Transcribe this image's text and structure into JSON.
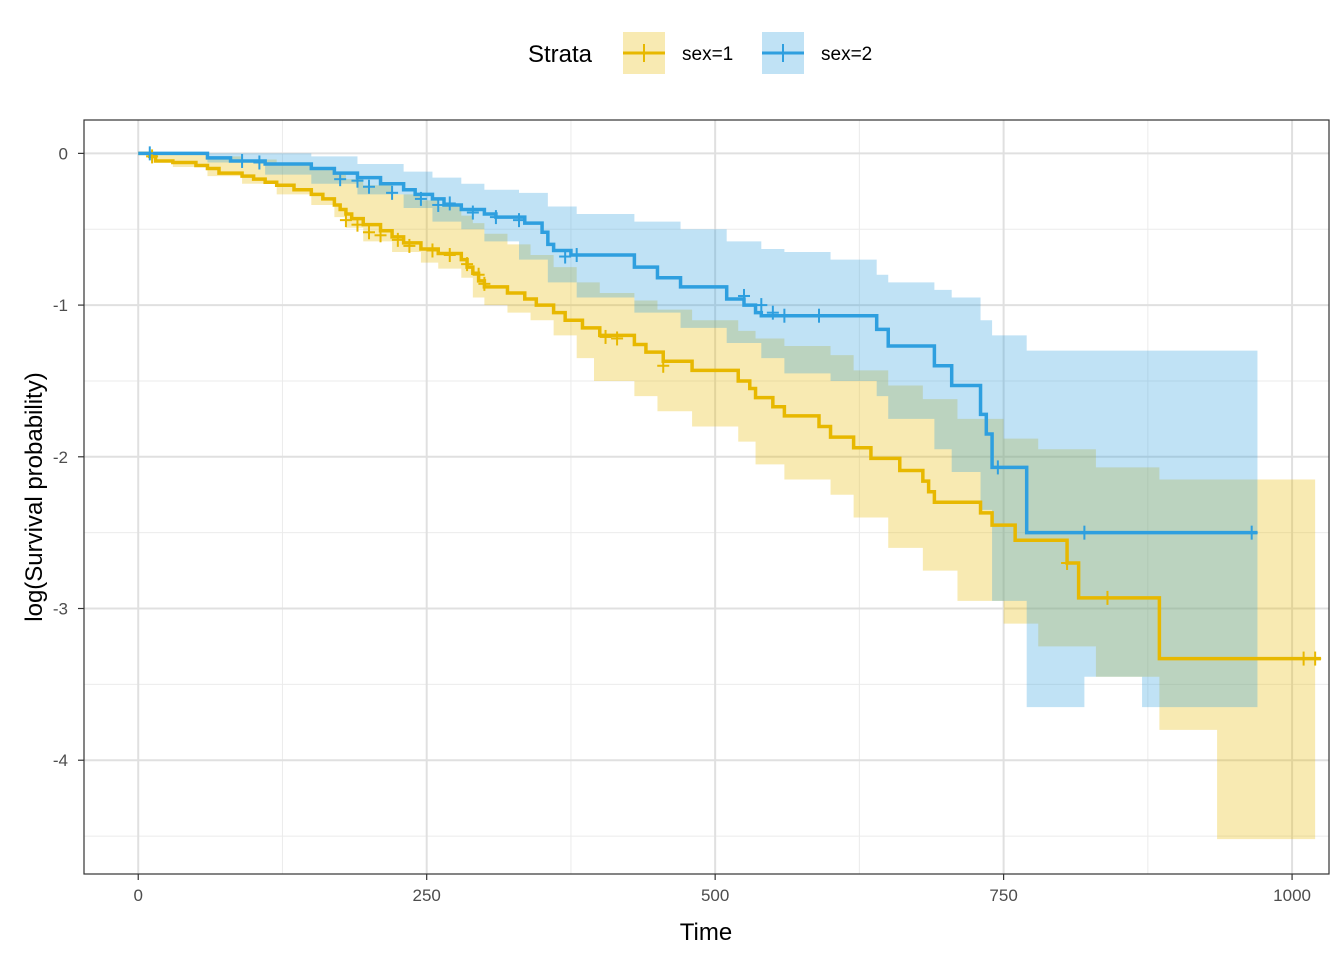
{
  "chart_data": {
    "type": "line",
    "subtype": "kaplan-meier step curve with confidence bands",
    "xlabel": "Time",
    "ylabel": "log(Survival probability)",
    "xlim": [
      -47,
      1032
    ],
    "ylim": [
      -4.75,
      0.22
    ],
    "x_ticks": [
      0,
      250,
      500,
      750,
      1000
    ],
    "y_ticks": [
      0,
      -1,
      -2,
      -3,
      -4
    ],
    "x_tick_labels": [
      "0",
      "250",
      "500",
      "750",
      "1000"
    ],
    "y_tick_labels": [
      "0",
      "-1",
      "-2",
      "-3",
      "-4"
    ],
    "grid": true,
    "legend": {
      "title": "Strata",
      "position": "top",
      "entries": [
        "sex=1",
        "sex=2"
      ]
    },
    "series": [
      {
        "name": "sex=1",
        "color": "#E7B800",
        "steps": [
          [
            0,
            0
          ],
          [
            10,
            -0.02
          ],
          [
            15,
            -0.05
          ],
          [
            30,
            -0.06
          ],
          [
            50,
            -0.08
          ],
          [
            60,
            -0.1
          ],
          [
            70,
            -0.13
          ],
          [
            90,
            -0.15
          ],
          [
            100,
            -0.17
          ],
          [
            110,
            -0.19
          ],
          [
            120,
            -0.21
          ],
          [
            135,
            -0.24
          ],
          [
            150,
            -0.27
          ],
          [
            160,
            -0.3
          ],
          [
            170,
            -0.34
          ],
          [
            175,
            -0.37
          ],
          [
            180,
            -0.4
          ],
          [
            185,
            -0.43
          ],
          [
            195,
            -0.47
          ],
          [
            210,
            -0.51
          ],
          [
            220,
            -0.55
          ],
          [
            230,
            -0.59
          ],
          [
            245,
            -0.63
          ],
          [
            260,
            -0.66
          ],
          [
            280,
            -0.7
          ],
          [
            285,
            -0.75
          ],
          [
            290,
            -0.79
          ],
          [
            295,
            -0.84
          ],
          [
            300,
            -0.88
          ],
          [
            320,
            -0.92
          ],
          [
            335,
            -0.96
          ],
          [
            345,
            -1.0
          ],
          [
            360,
            -1.05
          ],
          [
            370,
            -1.1
          ],
          [
            385,
            -1.15
          ],
          [
            400,
            -1.2
          ],
          [
            430,
            -1.26
          ],
          [
            440,
            -1.31
          ],
          [
            455,
            -1.37
          ],
          [
            480,
            -1.43
          ],
          [
            520,
            -1.5
          ],
          [
            530,
            -1.55
          ],
          [
            535,
            -1.61
          ],
          [
            550,
            -1.67
          ],
          [
            560,
            -1.73
          ],
          [
            590,
            -1.8
          ],
          [
            600,
            -1.87
          ],
          [
            620,
            -1.94
          ],
          [
            635,
            -2.01
          ],
          [
            660,
            -2.09
          ],
          [
            680,
            -2.16
          ],
          [
            685,
            -2.23
          ],
          [
            690,
            -2.3
          ],
          [
            730,
            -2.37
          ],
          [
            740,
            -2.45
          ],
          [
            760,
            -2.55
          ],
          [
            805,
            -2.7
          ],
          [
            815,
            -2.93
          ],
          [
            885,
            -3.33
          ],
          [
            1025,
            -3.33
          ]
        ],
        "lower": [
          [
            0,
            0
          ],
          [
            10,
            -0.04
          ],
          [
            30,
            -0.09
          ],
          [
            60,
            -0.15
          ],
          [
            90,
            -0.2
          ],
          [
            120,
            -0.27
          ],
          [
            150,
            -0.34
          ],
          [
            170,
            -0.42
          ],
          [
            180,
            -0.49
          ],
          [
            195,
            -0.58
          ],
          [
            220,
            -0.65
          ],
          [
            245,
            -0.72
          ],
          [
            260,
            -0.76
          ],
          [
            280,
            -0.82
          ],
          [
            290,
            -0.95
          ],
          [
            300,
            -1.0
          ],
          [
            320,
            -1.05
          ],
          [
            340,
            -1.1
          ],
          [
            360,
            -1.2
          ],
          [
            380,
            -1.35
          ],
          [
            395,
            -1.5
          ],
          [
            430,
            -1.6
          ],
          [
            450,
            -1.7
          ],
          [
            480,
            -1.8
          ],
          [
            520,
            -1.9
          ],
          [
            535,
            -2.05
          ],
          [
            560,
            -2.15
          ],
          [
            600,
            -2.25
          ],
          [
            620,
            -2.4
          ],
          [
            650,
            -2.6
          ],
          [
            680,
            -2.75
          ],
          [
            710,
            -2.95
          ],
          [
            750,
            -3.1
          ],
          [
            780,
            -3.25
          ],
          [
            830,
            -3.45
          ],
          [
            885,
            -3.8
          ],
          [
            935,
            -4.52
          ],
          [
            1020,
            -4.52
          ]
        ],
        "upper": [
          [
            0,
            0
          ],
          [
            30,
            0
          ],
          [
            60,
            -0.02
          ],
          [
            90,
            -0.04
          ],
          [
            120,
            -0.07
          ],
          [
            150,
            -0.1
          ],
          [
            170,
            -0.14
          ],
          [
            180,
            -0.17
          ],
          [
            195,
            -0.21
          ],
          [
            220,
            -0.27
          ],
          [
            245,
            -0.31
          ],
          [
            260,
            -0.35
          ],
          [
            280,
            -0.41
          ],
          [
            290,
            -0.46
          ],
          [
            300,
            -0.53
          ],
          [
            320,
            -0.6
          ],
          [
            340,
            -0.67
          ],
          [
            360,
            -0.75
          ],
          [
            380,
            -0.85
          ],
          [
            400,
            -0.92
          ],
          [
            430,
            -0.97
          ],
          [
            450,
            -1.03
          ],
          [
            480,
            -1.1
          ],
          [
            520,
            -1.17
          ],
          [
            535,
            -1.22
          ],
          [
            560,
            -1.27
          ],
          [
            600,
            -1.33
          ],
          [
            620,
            -1.43
          ],
          [
            650,
            -1.53
          ],
          [
            680,
            -1.62
          ],
          [
            710,
            -1.75
          ],
          [
            750,
            -1.88
          ],
          [
            780,
            -1.95
          ],
          [
            830,
            -2.07
          ],
          [
            885,
            -2.15
          ],
          [
            935,
            -2.15
          ],
          [
            1020,
            -2.15
          ]
        ]
      },
      {
        "name": "sex=2",
        "color": "#2E9FDF",
        "steps": [
          [
            0,
            0
          ],
          [
            60,
            -0.03
          ],
          [
            80,
            -0.05
          ],
          [
            110,
            -0.07
          ],
          [
            150,
            -0.1
          ],
          [
            170,
            -0.13
          ],
          [
            190,
            -0.16
          ],
          [
            210,
            -0.2
          ],
          [
            230,
            -0.24
          ],
          [
            240,
            -0.27
          ],
          [
            255,
            -0.3
          ],
          [
            265,
            -0.34
          ],
          [
            280,
            -0.37
          ],
          [
            300,
            -0.4
          ],
          [
            310,
            -0.42
          ],
          [
            335,
            -0.46
          ],
          [
            350,
            -0.52
          ],
          [
            355,
            -0.6
          ],
          [
            360,
            -0.64
          ],
          [
            375,
            -0.67
          ],
          [
            430,
            -0.75
          ],
          [
            450,
            -0.82
          ],
          [
            470,
            -0.88
          ],
          [
            510,
            -0.96
          ],
          [
            525,
            -1.0
          ],
          [
            535,
            -1.05
          ],
          [
            540,
            -1.07
          ],
          [
            560,
            -1.07
          ],
          [
            640,
            -1.16
          ],
          [
            650,
            -1.27
          ],
          [
            690,
            -1.4
          ],
          [
            705,
            -1.53
          ],
          [
            730,
            -1.72
          ],
          [
            735,
            -1.85
          ],
          [
            740,
            -2.07
          ],
          [
            770,
            -2.5
          ],
          [
            970,
            -2.5
          ]
        ],
        "lower": [
          [
            0,
            0
          ],
          [
            60,
            -0.06
          ],
          [
            110,
            -0.14
          ],
          [
            150,
            -0.2
          ],
          [
            190,
            -0.27
          ],
          [
            230,
            -0.36
          ],
          [
            255,
            -0.45
          ],
          [
            280,
            -0.5
          ],
          [
            300,
            -0.58
          ],
          [
            330,
            -0.7
          ],
          [
            355,
            -0.85
          ],
          [
            380,
            -0.95
          ],
          [
            430,
            -1.05
          ],
          [
            470,
            -1.15
          ],
          [
            510,
            -1.25
          ],
          [
            540,
            -1.35
          ],
          [
            560,
            -1.45
          ],
          [
            600,
            -1.5
          ],
          [
            640,
            -1.6
          ],
          [
            650,
            -1.75
          ],
          [
            690,
            -1.95
          ],
          [
            705,
            -2.1
          ],
          [
            730,
            -2.35
          ],
          [
            740,
            -2.95
          ],
          [
            770,
            -3.65
          ],
          [
            820,
            -3.45
          ],
          [
            870,
            -3.65
          ],
          [
            970,
            -3.65
          ]
        ],
        "upper": [
          [
            0,
            0
          ],
          [
            110,
            0
          ],
          [
            150,
            -0.02
          ],
          [
            190,
            -0.07
          ],
          [
            230,
            -0.12
          ],
          [
            255,
            -0.16
          ],
          [
            280,
            -0.2
          ],
          [
            300,
            -0.24
          ],
          [
            330,
            -0.26
          ],
          [
            355,
            -0.35
          ],
          [
            380,
            -0.4
          ],
          [
            430,
            -0.45
          ],
          [
            470,
            -0.5
          ],
          [
            510,
            -0.58
          ],
          [
            540,
            -0.63
          ],
          [
            560,
            -0.65
          ],
          [
            600,
            -0.7
          ],
          [
            640,
            -0.8
          ],
          [
            650,
            -0.85
          ],
          [
            690,
            -0.9
          ],
          [
            705,
            -0.95
          ],
          [
            730,
            -1.1
          ],
          [
            740,
            -1.2
          ],
          [
            770,
            -1.3
          ],
          [
            970,
            -1.3
          ]
        ]
      }
    ],
    "censor_marks": {
      "sex=1": [
        [
          12,
          -0.02
        ],
        [
          180,
          -0.44
        ],
        [
          190,
          -0.47
        ],
        [
          200,
          -0.52
        ],
        [
          210,
          -0.54
        ],
        [
          225,
          -0.57
        ],
        [
          235,
          -0.61
        ],
        [
          255,
          -0.64
        ],
        [
          270,
          -0.67
        ],
        [
          285,
          -0.73
        ],
        [
          295,
          -0.8
        ],
        [
          300,
          -0.86
        ],
        [
          405,
          -1.21
        ],
        [
          415,
          -1.22
        ],
        [
          455,
          -1.4
        ],
        [
          805,
          -2.7
        ],
        [
          840,
          -2.93
        ],
        [
          1010,
          -3.33
        ],
        [
          1020,
          -3.33
        ]
      ],
      "sex=2": [
        [
          10,
          0
        ],
        [
          90,
          -0.05
        ],
        [
          105,
          -0.06
        ],
        [
          175,
          -0.17
        ],
        [
          190,
          -0.18
        ],
        [
          200,
          -0.22
        ],
        [
          220,
          -0.26
        ],
        [
          245,
          -0.3
        ],
        [
          260,
          -0.34
        ],
        [
          270,
          -0.33
        ],
        [
          290,
          -0.39
        ],
        [
          310,
          -0.42
        ],
        [
          330,
          -0.44
        ],
        [
          370,
          -0.68
        ],
        [
          380,
          -0.67
        ],
        [
          525,
          -0.94
        ],
        [
          540,
          -1.0
        ],
        [
          550,
          -1.05
        ],
        [
          560,
          -1.07
        ],
        [
          590,
          -1.07
        ],
        [
          745,
          -2.07
        ],
        [
          820,
          -2.5
        ],
        [
          965,
          -2.5
        ]
      ]
    }
  }
}
